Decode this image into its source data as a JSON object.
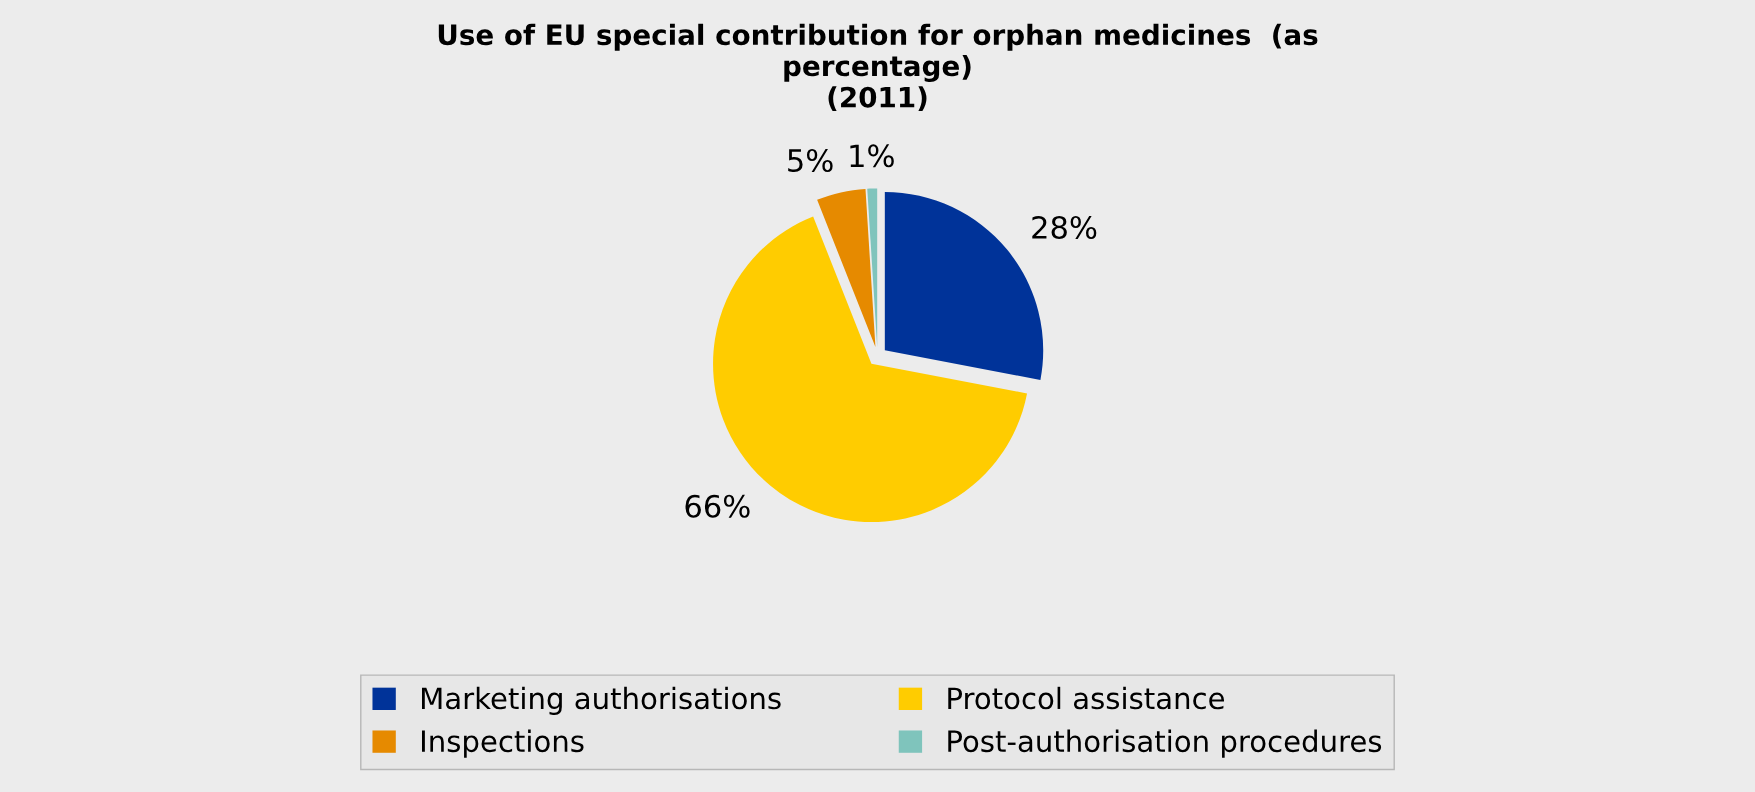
{
  "chart_data": {
    "type": "pie",
    "title": "Use of EU special contribution for orphan medicines  (as\npercentage)\n(2011)",
    "categories": [
      "Marketing authorisations",
      "Protocol assistance",
      "Inspections",
      "Post-authorisation procedures"
    ],
    "values": [
      28,
      66,
      5,
      1
    ],
    "value_labels": [
      "28%",
      "66%",
      "5%",
      "1%"
    ],
    "colors": [
      "#003399",
      "#ffcc00",
      "#e68a00",
      "#7fc4bc"
    ],
    "legend": "bottom"
  }
}
